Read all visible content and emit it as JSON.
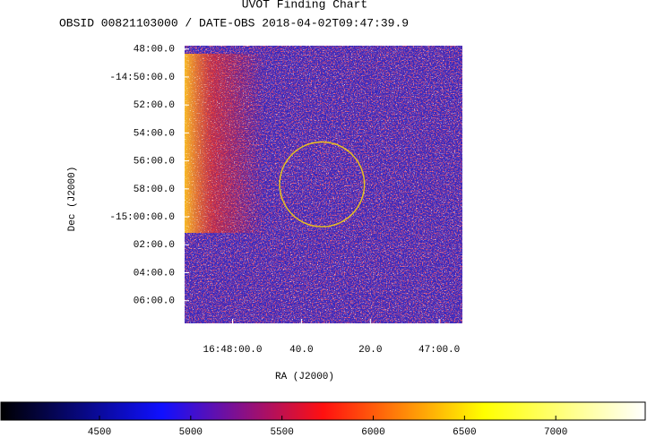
{
  "chart_data": {
    "type": "image",
    "title": "UVOT Finding Chart",
    "subtitle": "OBSID 00821103000 / DATE-OBS 2018-04-02T09:47:39.9",
    "xlabel": "RA (J2000)",
    "ylabel": "Dec (J2000)",
    "xlim": [
      252.058,
      251.722
    ],
    "xticks": [
      {
        "value": 252.0,
        "label": "16:48:00.0"
      },
      {
        "value": 251.9167,
        "label": "40.0"
      },
      {
        "value": 251.8333,
        "label": "20.0"
      },
      {
        "value": 251.75,
        "label": "47:00.0"
      }
    ],
    "ylim": [
      -15.127,
      -14.796
    ],
    "yticks": [
      {
        "value": -14.8,
        "label": "48:00.0"
      },
      {
        "value": -14.8333,
        "label": "-14:50:00.0"
      },
      {
        "value": -14.8667,
        "label": "52:00.0"
      },
      {
        "value": -14.9,
        "label": "54:00.0"
      },
      {
        "value": -14.9333,
        "label": "56:00.0"
      },
      {
        "value": -14.9667,
        "label": "58:00.0"
      },
      {
        "value": -15.0,
        "label": "-15:00:00.0"
      },
      {
        "value": -15.0333,
        "label": "02:00.0"
      },
      {
        "value": -15.0667,
        "label": "04:00.0"
      },
      {
        "value": -15.1,
        "label": "06:00.0"
      }
    ],
    "region": {
      "ra": 251.8918,
      "dec": -14.9613,
      "radius": 0.0505,
      "color": "#e8c020"
    },
    "clim": [
      3960,
      7490
    ],
    "cticks": [
      4500,
      5000,
      5500,
      6000,
      6500,
      7000
    ],
    "colormap": [
      "#000000",
      "#1010ff",
      "#ff1010",
      "#ffff00",
      "#ffffff"
    ]
  }
}
